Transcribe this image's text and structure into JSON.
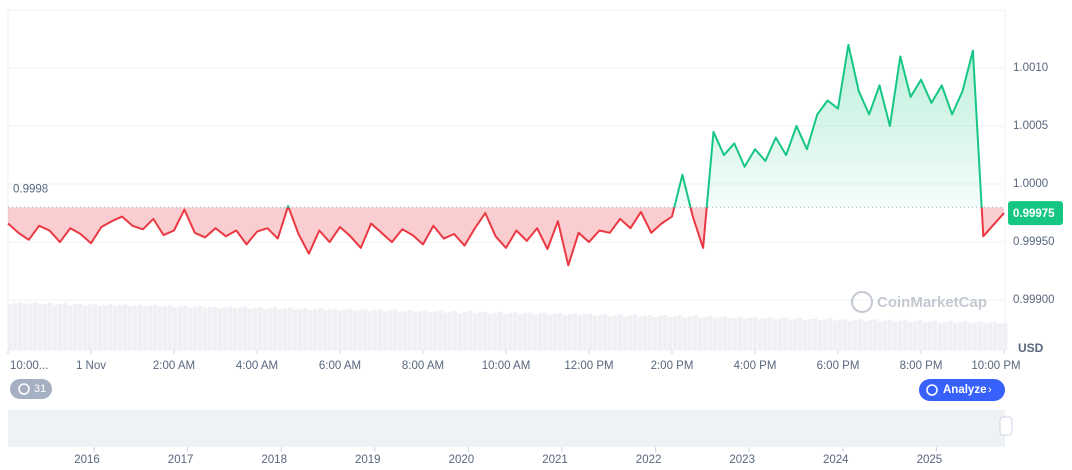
{
  "chart_data": {
    "type": "line",
    "unit": "USD",
    "baseline": 0.9998,
    "current_value": 0.99975,
    "up_color": "#16c784",
    "down_color": "#ea3943",
    "grid": true,
    "x": [
      0,
      0.25,
      0.5,
      0.75,
      1,
      1.25,
      1.5,
      1.75,
      2,
      2.25,
      2.5,
      2.75,
      3,
      3.25,
      3.5,
      3.75,
      4,
      4.25,
      4.5,
      4.75,
      5,
      5.25,
      5.5,
      5.75,
      6,
      6.25,
      6.5,
      6.75,
      7,
      7.25,
      7.5,
      7.75,
      8,
      8.25,
      8.5,
      8.75,
      9,
      9.25,
      9.5,
      9.75,
      10,
      10.25,
      10.5,
      10.75,
      11,
      11.25,
      11.5,
      11.75,
      12,
      12.25,
      12.5,
      12.75,
      13,
      13.25,
      13.5,
      13.75,
      14,
      14.25,
      14.5,
      14.75,
      15,
      15.25,
      15.5,
      15.75,
      16,
      16.25,
      16.5,
      16.75,
      17,
      17.25,
      17.5,
      17.75,
      18,
      18.25,
      18.5,
      18.75,
      19,
      19.25,
      19.5,
      19.75,
      20,
      20.25,
      20.5,
      20.75,
      21,
      21.25,
      21.5,
      21.75,
      22,
      22.25,
      22.5,
      22.75,
      23,
      23.25,
      23.5,
      23.75,
      24
    ],
    "values": [
      0.99966,
      0.99958,
      0.99952,
      0.99964,
      0.9996,
      0.9995,
      0.99962,
      0.99957,
      0.99949,
      0.99963,
      0.99968,
      0.99972,
      0.99964,
      0.99961,
      0.9997,
      0.99956,
      0.9996,
      0.99978,
      0.99958,
      0.99954,
      0.99962,
      0.99955,
      0.9996,
      0.99948,
      0.99959,
      0.99962,
      0.99953,
      0.99981,
      0.99957,
      0.9994,
      0.9996,
      0.9995,
      0.99963,
      0.99955,
      0.99945,
      0.99966,
      0.99958,
      0.9995,
      0.99961,
      0.99956,
      0.99948,
      0.99964,
      0.99953,
      0.99957,
      0.99947,
      0.99962,
      0.99975,
      0.99955,
      0.99945,
      0.9996,
      0.99951,
      0.99962,
      0.99944,
      0.99968,
      0.9993,
      0.99958,
      0.9995,
      0.9996,
      0.99958,
      0.9997,
      0.99962,
      0.99976,
      0.99958,
      0.99966,
      0.99972,
      1.00008,
      0.99972,
      0.99945,
      1.00045,
      1.00025,
      1.00035,
      1.00015,
      1.0003,
      1.0002,
      1.0004,
      1.00025,
      1.0005,
      1.0003,
      1.0006,
      1.00072,
      1.00065,
      1.0012,
      1.0008,
      1.0006,
      1.00085,
      1.0005,
      1.0011,
      1.00075,
      1.0009,
      1.0007,
      1.00085,
      1.0006,
      1.0008,
      1.00115,
      0.99955,
      0.99965,
      0.99975
    ],
    "xlim": [
      0,
      24
    ],
    "xticks": [
      {
        "value": 0,
        "label": "10:00..."
      },
      {
        "value": 2,
        "label": "1 Nov"
      },
      {
        "value": 4,
        "label": "2:00 AM"
      },
      {
        "value": 6,
        "label": "4:00 AM"
      },
      {
        "value": 8,
        "label": "6:00 AM"
      },
      {
        "value": 10,
        "label": "8:00 AM"
      },
      {
        "value": 12,
        "label": "10:00 AM"
      },
      {
        "value": 14,
        "label": "12:00 PM"
      },
      {
        "value": 16,
        "label": "2:00 PM"
      },
      {
        "value": 18,
        "label": "4:00 PM"
      },
      {
        "value": 20,
        "label": "6:00 PM"
      },
      {
        "value": 22,
        "label": "8:00 PM"
      },
      {
        "value": 24,
        "label": "10:00 PM"
      }
    ],
    "ylim": [
      0.99857,
      1.0015
    ],
    "yticks": [
      {
        "value": 0.999,
        "label": "0.99900"
      },
      {
        "value": 0.9995,
        "label": "0.99950"
      },
      {
        "value": 1,
        "label": "1.0000"
      },
      {
        "value": 1.0005,
        "label": "1.0005"
      },
      {
        "value": 1.001,
        "label": "1.0010"
      }
    ]
  },
  "watermark": "CoinMarketCap",
  "history_count": "31",
  "analyze_button": "Analyze",
  "navigator": {
    "years": [
      2016,
      2017,
      2018,
      2019,
      2020,
      2021,
      2022,
      2023,
      2024,
      2025
    ]
  }
}
